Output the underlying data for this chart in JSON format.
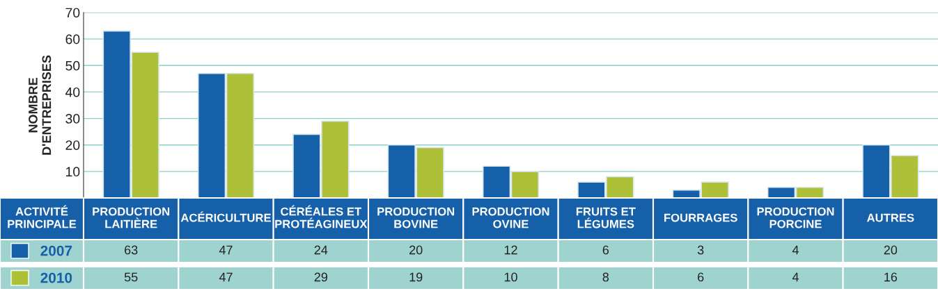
{
  "chart_data": {
    "type": "bar",
    "ylabel": "NOMBRE\nD'ENTREPRISES",
    "xlabel": "ACTIVITÉ\nPRINCIPALE",
    "categories": [
      "PRODUCTION\nLAITIÈRE",
      "ACÉRICULTURE",
      "CÉRÉALES ET\nPROTÉAGINEUX",
      "PRODUCTION\nBOVINE",
      "PRODUCTION\nOVINE",
      "FRUITS ET\nLÉGUMES",
      "FOURRAGES",
      "PRODUCTION\nPORCINE",
      "AUTRES"
    ],
    "series": [
      {
        "name": "2007",
        "color": "#1560a8",
        "values": [
          63,
          47,
          24,
          20,
          12,
          6,
          3,
          4,
          20
        ]
      },
      {
        "name": "2010",
        "color": "#adc038",
        "values": [
          55,
          47,
          29,
          19,
          10,
          8,
          6,
          4,
          16
        ]
      }
    ],
    "ylim": [
      0,
      70
    ],
    "yticks": [
      10,
      20,
      30,
      40,
      50,
      60,
      70
    ],
    "grid": "y",
    "legend": "bottom left",
    "data_labels": true
  }
}
